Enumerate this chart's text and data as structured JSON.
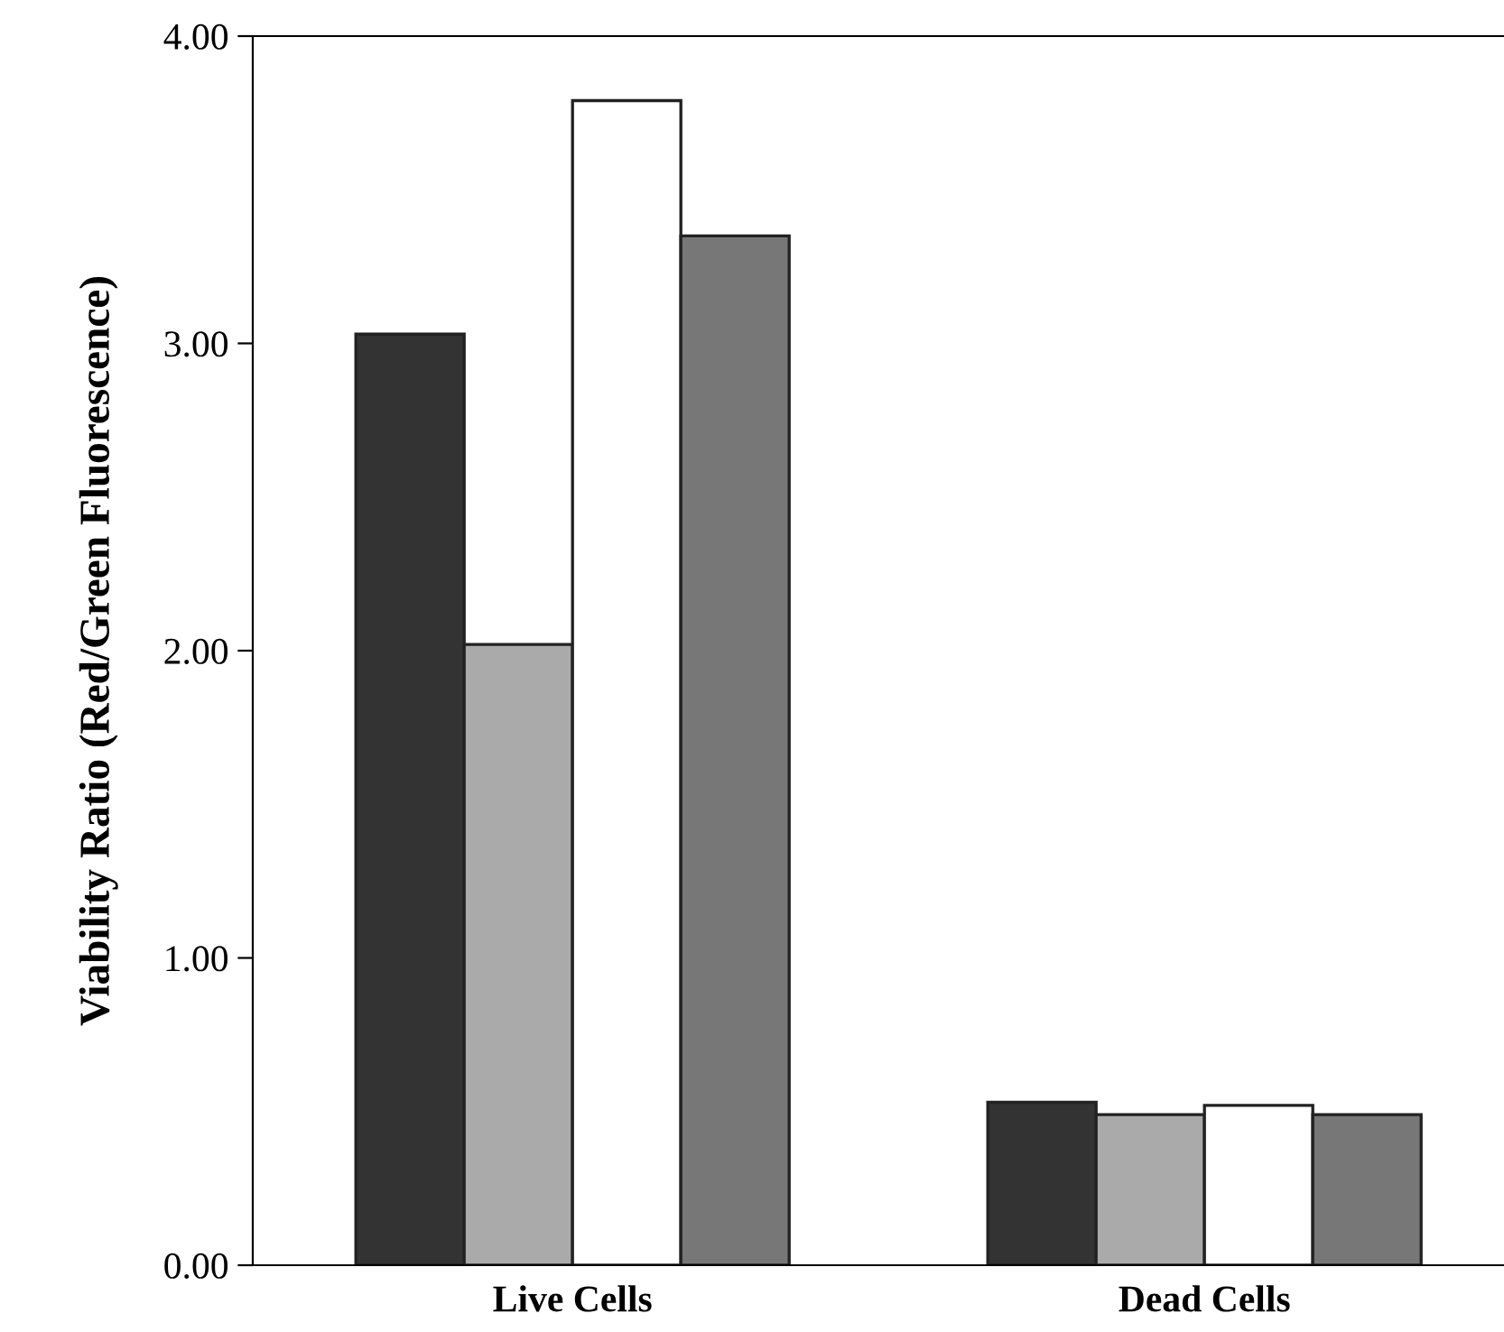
{
  "chart_data": {
    "type": "bar",
    "ylabel": "Viability Ratio (Red/Green Fluorescence)",
    "categories": [
      "Live Cells",
      "Dead Cells"
    ],
    "series": [
      {
        "color": "#333333",
        "values": [
          3.03,
          0.53
        ]
      },
      {
        "color": "#aaaaaa",
        "values": [
          2.02,
          0.49
        ]
      },
      {
        "color": "#ffffff",
        "values": [
          3.79,
          0.52
        ]
      },
      {
        "color": "#777777",
        "values": [
          3.35,
          0.49
        ]
      }
    ],
    "ylim": [
      0,
      4
    ],
    "yticks": [
      {
        "value": 0,
        "label": "0.00"
      },
      {
        "value": 1,
        "label": "1.00"
      },
      {
        "value": 2,
        "label": "2.00"
      },
      {
        "value": 3,
        "label": "3.00"
      },
      {
        "value": 4,
        "label": "4.00"
      }
    ],
    "grid": false,
    "legend": false
  }
}
